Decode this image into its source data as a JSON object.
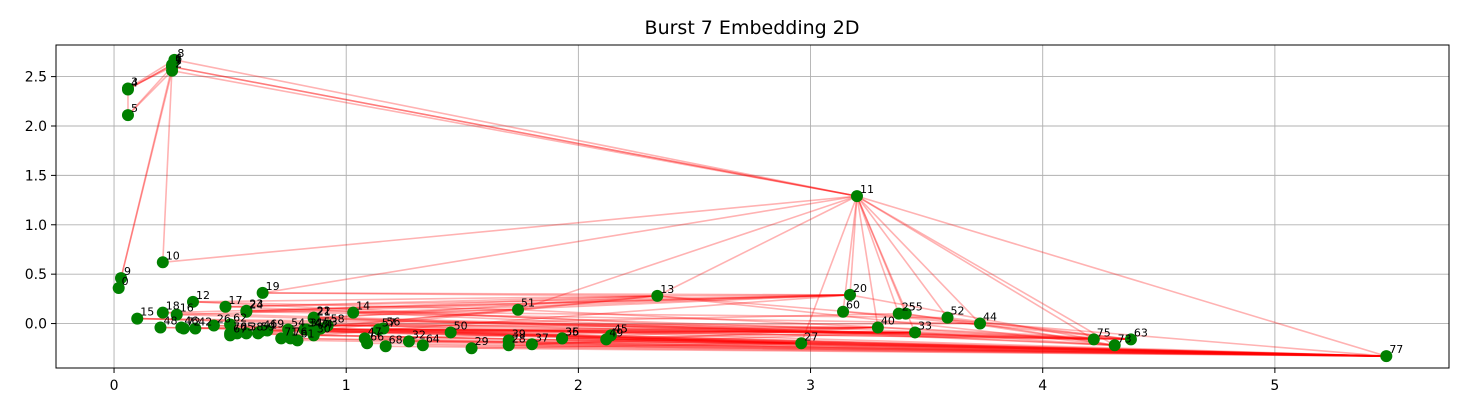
{
  "chart_data": {
    "type": "scatter",
    "title": "Burst 7 Embedding 2D",
    "xlabel": "",
    "ylabel": "",
    "xlim": [
      -0.25,
      5.75
    ],
    "ylim": [
      -0.45,
      2.82
    ],
    "xticks": [
      0,
      1,
      2,
      3,
      4,
      5
    ],
    "yticks": [
      0.0,
      0.5,
      1.0,
      1.5,
      2.0,
      2.5
    ],
    "xtick_labels": [
      "0",
      "1",
      "2",
      "3",
      "4",
      "5"
    ],
    "ytick_labels": [
      "0.0",
      "0.5",
      "1.0",
      "1.5",
      "2.0",
      "2.5"
    ],
    "grid": true,
    "point_color": "#008000",
    "edge_color": "#ff0000",
    "points": [
      {
        "id": "0",
        "x": 0.02,
        "y": 0.36
      },
      {
        "id": "1",
        "x": 0.25,
        "y": 2.6
      },
      {
        "id": "2",
        "x": 0.25,
        "y": 2.56
      },
      {
        "id": "3",
        "x": 0.06,
        "y": 2.38
      },
      {
        "id": "4",
        "x": 0.06,
        "y": 2.37
      },
      {
        "id": "5",
        "x": 0.06,
        "y": 2.11
      },
      {
        "id": "6",
        "x": 0.25,
        "y": 2.62
      },
      {
        "id": "7",
        "x": 0.25,
        "y": 2.6
      },
      {
        "id": "8",
        "x": 0.26,
        "y": 2.67
      },
      {
        "id": "9",
        "x": 0.03,
        "y": 0.46
      },
      {
        "id": "10",
        "x": 0.21,
        "y": 0.62
      },
      {
        "id": "11",
        "x": 3.2,
        "y": 1.29
      },
      {
        "id": "12",
        "x": 0.34,
        "y": 0.22
      },
      {
        "id": "13",
        "x": 2.34,
        "y": 0.28
      },
      {
        "id": "14",
        "x": 1.03,
        "y": 0.11
      },
      {
        "id": "15",
        "x": 0.1,
        "y": 0.05
      },
      {
        "id": "16",
        "x": 0.27,
        "y": 0.09
      },
      {
        "id": "17",
        "x": 0.48,
        "y": 0.17
      },
      {
        "id": "18",
        "x": 0.21,
        "y": 0.11
      },
      {
        "id": "19",
        "x": 0.64,
        "y": 0.31
      },
      {
        "id": "20",
        "x": 3.17,
        "y": 0.29
      },
      {
        "id": "21",
        "x": 0.86,
        "y": 0.05
      },
      {
        "id": "22",
        "x": 0.86,
        "y": 0.06
      },
      {
        "id": "23",
        "x": 0.57,
        "y": 0.13
      },
      {
        "id": "24",
        "x": 0.57,
        "y": 0.12
      },
      {
        "id": "25",
        "x": 3.38,
        "y": 0.1
      },
      {
        "id": "26",
        "x": 0.43,
        "y": -0.02
      },
      {
        "id": "27",
        "x": 2.96,
        "y": -0.2
      },
      {
        "id": "28",
        "x": 1.7,
        "y": -0.22
      },
      {
        "id": "29",
        "x": 1.54,
        "y": -0.25
      },
      {
        "id": "30",
        "x": 0.86,
        "y": -0.12
      },
      {
        "id": "31",
        "x": 0.83,
        "y": -0.06
      },
      {
        "id": "32",
        "x": 1.27,
        "y": -0.18
      },
      {
        "id": "33",
        "x": 3.45,
        "y": -0.09
      },
      {
        "id": "34",
        "x": 0.82,
        "y": -0.06
      },
      {
        "id": "35",
        "x": 1.93,
        "y": -0.15
      },
      {
        "id": "36",
        "x": 1.93,
        "y": -0.15
      },
      {
        "id": "37",
        "x": 1.8,
        "y": -0.21
      },
      {
        "id": "38",
        "x": 0.57,
        "y": -0.1
      },
      {
        "id": "39",
        "x": 1.7,
        "y": -0.17
      },
      {
        "id": "40",
        "x": 3.29,
        "y": -0.04
      },
      {
        "id": "41",
        "x": 0.63,
        "y": -0.08
      },
      {
        "id": "42",
        "x": 0.35,
        "y": -0.05
      },
      {
        "id": "43",
        "x": 0.85,
        "y": -0.07
      },
      {
        "id": "44",
        "x": 3.73,
        "y": 0.0
      },
      {
        "id": "45",
        "x": 2.14,
        "y": -0.12
      },
      {
        "id": "46",
        "x": 0.29,
        "y": -0.04
      },
      {
        "id": "47",
        "x": 1.08,
        "y": -0.15
      },
      {
        "id": "48",
        "x": 0.2,
        "y": -0.04
      },
      {
        "id": "49",
        "x": 2.12,
        "y": -0.16
      },
      {
        "id": "50",
        "x": 1.45,
        "y": -0.09
      },
      {
        "id": "51",
        "x": 1.74,
        "y": 0.14
      },
      {
        "id": "52",
        "x": 3.59,
        "y": 0.06
      },
      {
        "id": "53",
        "x": 0.89,
        "y": -0.05
      },
      {
        "id": "54",
        "x": 0.75,
        "y": -0.06
      },
      {
        "id": "55",
        "x": 3.41,
        "y": 0.1
      },
      {
        "id": "56",
        "x": 1.16,
        "y": -0.05
      },
      {
        "id": "57",
        "x": 1.14,
        "y": -0.06
      },
      {
        "id": "58",
        "x": 0.92,
        "y": -0.02
      },
      {
        "id": "59",
        "x": 0.62,
        "y": -0.1
      },
      {
        "id": "60",
        "x": 3.14,
        "y": 0.12
      },
      {
        "id": "61",
        "x": 0.79,
        "y": -0.17
      },
      {
        "id": "62",
        "x": 0.5,
        "y": -0.01
      },
      {
        "id": "63",
        "x": 4.38,
        "y": -0.16
      },
      {
        "id": "64",
        "x": 1.33,
        "y": -0.22
      },
      {
        "id": "65",
        "x": 0.53,
        "y": -0.1
      },
      {
        "id": "66",
        "x": 1.09,
        "y": -0.2
      },
      {
        "id": "67",
        "x": 0.5,
        "y": -0.12
      },
      {
        "id": "68",
        "x": 1.17,
        "y": -0.23
      },
      {
        "id": "69",
        "x": 0.66,
        "y": -0.07
      },
      {
        "id": "70",
        "x": 0.5,
        "y": -0.1
      },
      {
        "id": "71",
        "x": 0.72,
        "y": -0.15
      },
      {
        "id": "72",
        "x": 0.3,
        "y": -0.05
      },
      {
        "id": "73",
        "x": 4.31,
        "y": -0.22
      },
      {
        "id": "74",
        "x": 0.87,
        "y": -0.07
      },
      {
        "id": "75",
        "x": 4.22,
        "y": -0.16
      },
      {
        "id": "76",
        "x": 0.76,
        "y": -0.15
      },
      {
        "id": "77",
        "x": 5.48,
        "y": -0.33
      }
    ],
    "edges": [
      [
        "8",
        "1"
      ],
      [
        "8",
        "7"
      ],
      [
        "7",
        "6"
      ],
      [
        "6",
        "2"
      ],
      [
        "2",
        "1"
      ],
      [
        "1",
        "3"
      ],
      [
        "3",
        "4"
      ],
      [
        "4",
        "6"
      ],
      [
        "3",
        "8"
      ],
      [
        "5",
        "1"
      ],
      [
        "5",
        "2"
      ],
      [
        "5",
        "4"
      ],
      [
        "6",
        "4"
      ],
      [
        "8",
        "11"
      ],
      [
        "7",
        "11"
      ],
      [
        "1",
        "11"
      ],
      [
        "2",
        "11"
      ],
      [
        "9",
        "2"
      ],
      [
        "9",
        "7"
      ],
      [
        "10",
        "1"
      ],
      [
        "10",
        "11"
      ],
      [
        "11",
        "19"
      ],
      [
        "11",
        "51"
      ],
      [
        "11",
        "13"
      ],
      [
        "11",
        "20"
      ],
      [
        "11",
        "25"
      ],
      [
        "11",
        "55"
      ],
      [
        "11",
        "52"
      ],
      [
        "11",
        "44"
      ],
      [
        "11",
        "40"
      ],
      [
        "11",
        "33"
      ],
      [
        "11",
        "75"
      ],
      [
        "11",
        "73"
      ],
      [
        "11",
        "77"
      ],
      [
        "11",
        "60"
      ],
      [
        "11",
        "27"
      ],
      [
        "19",
        "20"
      ],
      [
        "19",
        "13"
      ],
      [
        "12",
        "13"
      ],
      [
        "12",
        "51"
      ],
      [
        "17",
        "20"
      ],
      [
        "17",
        "13"
      ],
      [
        "14",
        "51"
      ],
      [
        "13",
        "20"
      ],
      [
        "13",
        "77"
      ],
      [
        "15",
        "77"
      ],
      [
        "48",
        "77"
      ],
      [
        "26",
        "77"
      ],
      [
        "46",
        "77"
      ],
      [
        "29",
        "77"
      ],
      [
        "37",
        "77"
      ],
      [
        "28",
        "77"
      ],
      [
        "50",
        "77"
      ],
      [
        "45",
        "77"
      ],
      [
        "49",
        "77"
      ],
      [
        "35",
        "77"
      ],
      [
        "36",
        "77"
      ],
      [
        "27",
        "77"
      ],
      [
        "32",
        "77"
      ],
      [
        "64",
        "77"
      ],
      [
        "68",
        "77"
      ],
      [
        "66",
        "77"
      ],
      [
        "47",
        "77"
      ],
      [
        "70",
        "77"
      ],
      [
        "65",
        "77"
      ],
      [
        "61",
        "77"
      ],
      [
        "71",
        "77"
      ],
      [
        "76",
        "77"
      ],
      [
        "74",
        "77"
      ],
      [
        "31",
        "77"
      ],
      [
        "30",
        "77"
      ],
      [
        "15",
        "63"
      ],
      [
        "18",
        "63"
      ],
      [
        "16",
        "75"
      ],
      [
        "12",
        "73"
      ],
      [
        "17",
        "63"
      ],
      [
        "24",
        "44"
      ],
      [
        "23",
        "52"
      ],
      [
        "21",
        "75"
      ],
      [
        "22",
        "63"
      ],
      [
        "14",
        "73"
      ],
      [
        "58",
        "44"
      ],
      [
        "57",
        "63"
      ],
      [
        "56",
        "75"
      ],
      [
        "51",
        "63"
      ],
      [
        "13",
        "73"
      ],
      [
        "20",
        "75"
      ],
      [
        "25",
        "63"
      ],
      [
        "55",
        "73"
      ],
      [
        "52",
        "63"
      ],
      [
        "44",
        "73"
      ],
      [
        "40",
        "75"
      ],
      [
        "33",
        "73"
      ],
      [
        "60",
        "63"
      ],
      [
        "15",
        "40"
      ],
      [
        "48",
        "33"
      ],
      [
        "42",
        "25"
      ],
      [
        "26",
        "27"
      ],
      [
        "62",
        "33"
      ],
      [
        "38",
        "40"
      ],
      [
        "41",
        "33"
      ],
      [
        "69",
        "27"
      ],
      [
        "54",
        "33"
      ],
      [
        "43",
        "40"
      ],
      [
        "34",
        "33"
      ],
      [
        "53",
        "27"
      ],
      [
        "58",
        "40"
      ],
      [
        "57",
        "33"
      ],
      [
        "56",
        "27"
      ],
      [
        "47",
        "40"
      ],
      [
        "32",
        "27"
      ],
      [
        "29",
        "27"
      ],
      [
        "28",
        "33"
      ],
      [
        "37",
        "40"
      ],
      [
        "35",
        "27"
      ],
      [
        "36",
        "33"
      ],
      [
        "45",
        "40"
      ],
      [
        "49",
        "27"
      ],
      [
        "50",
        "33"
      ],
      [
        "16",
        "20"
      ],
      [
        "18",
        "20"
      ],
      [
        "23",
        "20"
      ],
      [
        "24",
        "13"
      ],
      [
        "22",
        "20"
      ],
      [
        "21",
        "13"
      ],
      [
        "14",
        "20"
      ],
      [
        "59",
        "13"
      ],
      [
        "65",
        "51"
      ],
      [
        "30",
        "20"
      ],
      [
        "74",
        "13"
      ],
      [
        "9",
        "0"
      ]
    ]
  }
}
